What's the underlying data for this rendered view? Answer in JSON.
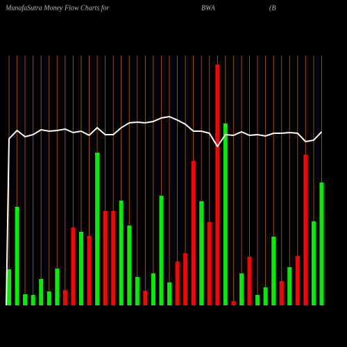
{
  "chart_data": {
    "type": "bar",
    "title": "MunafaSutra  Money Flow  Charts for",
    "symbol": "BWA",
    "name": "(B",
    "categories": [
      null,
      null,
      null,
      null,
      null,
      null,
      null,
      null,
      null,
      null,
      null,
      null,
      null,
      null,
      null,
      null,
      null,
      null,
      null,
      null,
      null,
      null,
      null,
      null,
      null,
      null,
      null,
      null,
      null,
      null,
      null,
      null,
      null,
      null,
      null,
      null,
      null,
      null,
      null,
      null
    ],
    "series": [
      {
        "color": "#00ee00",
        "values": [
          52,
          142,
          16,
          15,
          38,
          20,
          53,
          null,
          null,
          106,
          null,
          220,
          null,
          null,
          151,
          115,
          41,
          null,
          46,
          158,
          33,
          null,
          null,
          null,
          150,
          null,
          null,
          262,
          null,
          46,
          null,
          15,
          26,
          99,
          null,
          55,
          null,
          null,
          121,
          177
        ]
      },
      {
        "color": "#ff0000",
        "values": [
          null,
          null,
          null,
          null,
          null,
          null,
          null,
          22,
          112,
          null,
          100,
          null,
          136,
          136,
          null,
          null,
          null,
          21,
          null,
          null,
          null,
          63,
          75,
          208,
          null,
          120,
          347,
          null,
          6,
          null,
          70,
          null,
          null,
          null,
          35,
          null,
          71,
          217,
          null,
          null
        ]
      },
      {
        "color": "#ffffff",
        "values": [
          240,
          252,
          243,
          246,
          253,
          251,
          252,
          254,
          249,
          251,
          245,
          256,
          246,
          246,
          256,
          263,
          264,
          263,
          265,
          270,
          272,
          267,
          261,
          251,
          251,
          248,
          229,
          246,
          245,
          250,
          245,
          246,
          244,
          248,
          248,
          249,
          248,
          236,
          238,
          250
        ]
      }
    ],
    "ylim": [
      0,
      360
    ],
    "gridline_color": "#a0520a"
  }
}
